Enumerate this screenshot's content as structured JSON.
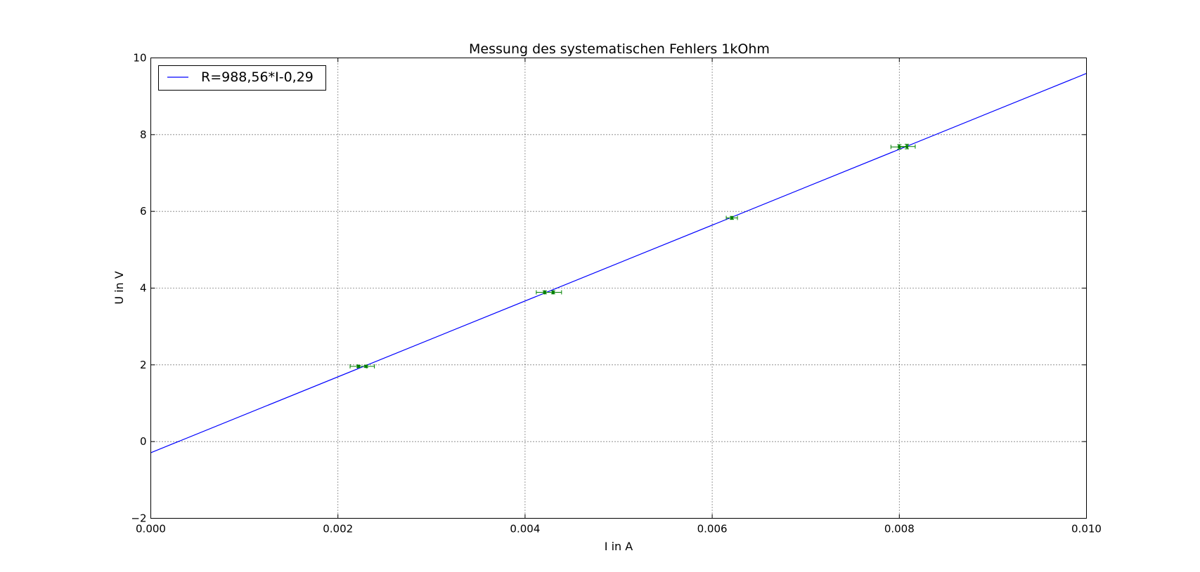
{
  "chart_data": {
    "type": "scatter",
    "title": "Messung des systematischen Fehlers 1kOhm",
    "xlabel": "I in A",
    "ylabel": "U in V",
    "xlim": [
      0.0,
      0.01
    ],
    "ylim": [
      -2,
      10
    ],
    "xticks": [
      "0.000",
      "0.002",
      "0.004",
      "0.006",
      "0.008",
      "0.010"
    ],
    "xtick_values": [
      0.0,
      0.002,
      0.004,
      0.006,
      0.008,
      0.01
    ],
    "yticks": [
      "−2",
      "0",
      "2",
      "4",
      "6",
      "8",
      "10"
    ],
    "ytick_values": [
      -2,
      0,
      2,
      4,
      6,
      8,
      10
    ],
    "grid": true,
    "legend_placement": "top-left",
    "fit_line": {
      "name": "R=988,56*I-0,29",
      "slope": 988.56,
      "intercept": -0.29,
      "color": "#0000ff"
    },
    "series": [
      {
        "color": "#008000",
        "points": [
          {
            "x": 0.00222,
            "y": 1.96,
            "xerr": 9e-05,
            "yerr": 0.03
          },
          {
            "x": 0.0023,
            "y": 1.96,
            "xerr": 9e-05,
            "yerr": 0.03
          },
          {
            "x": 0.00421,
            "y": 3.89,
            "xerr": 9e-05,
            "yerr": 0.04
          },
          {
            "x": 0.0043,
            "y": 3.89,
            "xerr": 9e-05,
            "yerr": 0.04
          },
          {
            "x": 0.00621,
            "y": 5.83,
            "xerr": 6e-05,
            "yerr": 0.04
          },
          {
            "x": 0.008,
            "y": 7.68,
            "xerr": 9e-05,
            "yerr": 0.06
          },
          {
            "x": 0.00808,
            "y": 7.69,
            "xerr": 9e-05,
            "yerr": 0.06
          }
        ]
      }
    ]
  }
}
